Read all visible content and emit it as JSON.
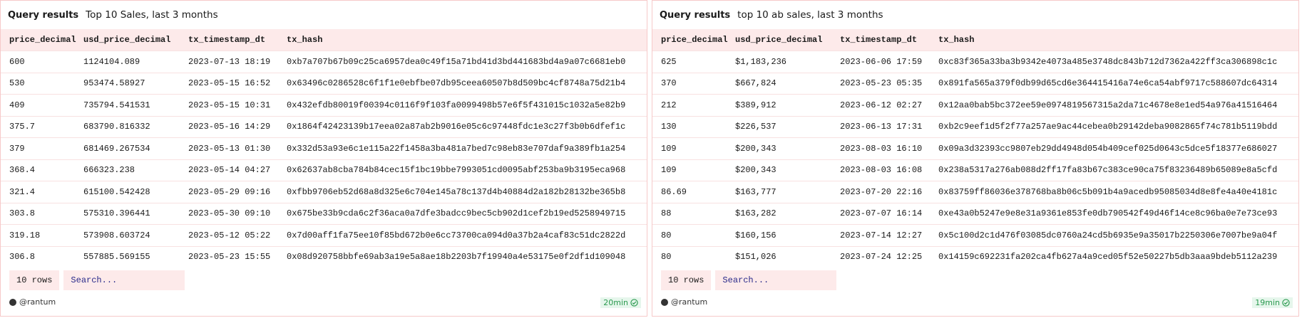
{
  "panels": [
    {
      "label": "Query results",
      "title": "Top 10 Sales, last 3 months",
      "columns": [
        "price_decimal",
        "usd_price_decimal",
        "tx_timestamp_dt",
        "tx_hash"
      ],
      "rows": [
        [
          "600",
          "1124104.089",
          "2023-07-13 18:19",
          "0xb7a707b67b09c25ca6957dea0c49f15a71bd41d3bd441683bd4a9a07c6681eb0"
        ],
        [
          "530",
          "953474.58927",
          "2023-05-15 16:52",
          "0x63496c0286528c6f1f1e0ebfbe07db95ceea60507b8d509bc4cf8748a75d21b4"
        ],
        [
          "409",
          "735794.541531",
          "2023-05-15 10:31",
          "0x432efdb80019f00394c0116f9f103fa0099498b57e6f5f431015c1032a5e82b9"
        ],
        [
          "375.7",
          "683790.816332",
          "2023-05-16 14:29",
          "0x1864f42423139b17eea02a87ab2b9016e05c6c97448fdc1e3c27f3b0b6dfef1c"
        ],
        [
          "379",
          "681469.267534",
          "2023-05-13 01:30",
          "0x332d53a93e6c1e115a22f1458a3ba481a7bed7c98eb83e707daf9a389fb1a254"
        ],
        [
          "368.4",
          "666323.238",
          "2023-05-14 04:27",
          "0x62637ab8cba784b84cec15f1bc19bbe7993051cd0095abf253ba9b3195eca968"
        ],
        [
          "321.4",
          "615100.542428",
          "2023-05-29 09:16",
          "0xfbb9706eb52d68a8d325e6c704e145a78c137d4b40884d2a182b28132be365b8"
        ],
        [
          "303.8",
          "575310.396441",
          "2023-05-30 09:10",
          "0x675be33b9cda6c2f36aca0a7dfe3badcc9bec5cb902d1cef2b19ed5258949715"
        ],
        [
          "319.18",
          "573908.603724",
          "2023-05-12 05:22",
          "0x7d00aff1fa75ee10f85bd672b0e6cc73700ca094d0a37b2a4caf83c51dc2822d"
        ],
        [
          "306.8",
          "557885.569155",
          "2023-05-23 15:55",
          "0x08d920758bbfe69ab3a19e5a8ae18b2203b7f19940a4e53175e0f2df1d109048"
        ]
      ],
      "row_count": "10 rows",
      "search_placeholder": "Search...",
      "author": "@rantum",
      "refreshed": "20min"
    },
    {
      "label": "Query results",
      "title": "top 10 ab sales, last 3 months",
      "columns": [
        "price_decimal",
        "usd_price_decimal",
        "tx_timestamp_dt",
        "tx_hash"
      ],
      "rows": [
        [
          "625",
          "$1,183,236",
          "2023-06-06 17:59",
          "0xc83f365a33ba3b9342e4073a485e3748dc843b712d7362a422ff3ca306898c1c"
        ],
        [
          "370",
          "$667,824",
          "2023-05-23 05:35",
          "0x891fa565a379f0db99d65cd6e364415416a74e6ca54abf9717c588607dc64314"
        ],
        [
          "212",
          "$389,912",
          "2023-06-12 02:27",
          "0x12aa0bab5bc372ee59e0974819567315a2da71c4678e8e1ed54a976a41516464"
        ],
        [
          "130",
          "$226,537",
          "2023-06-13 17:31",
          "0xb2c9eef1d5f2f77a257ae9ac44cebea0b29142deba9082865f74c781b5119bdd"
        ],
        [
          "109",
          "$200,343",
          "2023-08-03 16:10",
          "0x09a3d32393cc9807eb29dd4948d054b409cef025d0643c5dce5f18377e686027"
        ],
        [
          "109",
          "$200,343",
          "2023-08-03 16:08",
          "0x238a5317a276ab088d2ff17fa83b67c383ce90ca75f83236489b65089e8a5cfd"
        ],
        [
          "86.69",
          "$163,777",
          "2023-07-20 22:16",
          "0x83759ff86036e378768ba8b06c5b091b4a9acedb95085034d8e8fe4a40e4181c"
        ],
        [
          "88",
          "$163,282",
          "2023-07-07 16:14",
          "0xe43a0b5247e9e8e31a9361e853fe0db790542f49d46f14ce8c96ba0e7e73ce93"
        ],
        [
          "80",
          "$160,156",
          "2023-07-14 12:27",
          "0x5c100d2c1d476f03085dc0760a24cd5b6935e9a35017b2250306e7007be9a04f"
        ],
        [
          "80",
          "$151,026",
          "2023-07-24 12:25",
          "0x14159c692231fa202ca4fb627a4a9ced05f52e50227b5db3aaa9bdeb5112a239"
        ]
      ],
      "row_count": "10 rows",
      "search_placeholder": "Search...",
      "author": "@rantum",
      "refreshed": "19min"
    }
  ]
}
